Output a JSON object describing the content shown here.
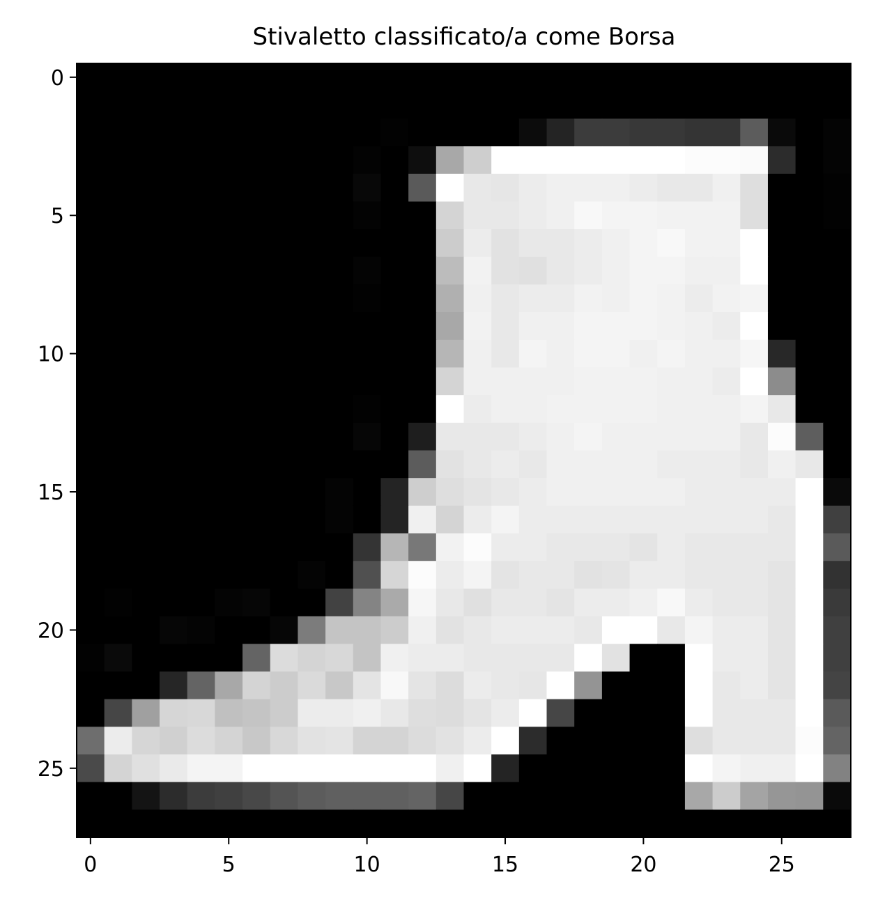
{
  "chart_data": {
    "type": "heatmap",
    "title": "Stivaletto classificato/a come Borsa",
    "xlabel": "",
    "ylabel": "",
    "colormap": "gray",
    "value_range": [
      0,
      255
    ],
    "xlim": [
      -0.5,
      27.5
    ],
    "ylim": [
      27.5,
      -0.5
    ],
    "x_ticks": [
      0,
      5,
      10,
      15,
      20,
      25
    ],
    "y_ticks": [
      0,
      5,
      10,
      15,
      20,
      25
    ],
    "x_tick_labels": [
      "0",
      "5",
      "10",
      "15",
      "20",
      "25"
    ],
    "y_tick_labels": [
      "0",
      "5",
      "10",
      "15",
      "20",
      "25"
    ],
    "grid": false,
    "rows": 28,
    "cols": 28,
    "pixels": [
      [
        0,
        0,
        0,
        0,
        0,
        0,
        0,
        0,
        0,
        0,
        0,
        0,
        0,
        0,
        0,
        0,
        0,
        0,
        0,
        0,
        0,
        0,
        0,
        0,
        0,
        0,
        0,
        0
      ],
      [
        0,
        0,
        0,
        0,
        0,
        0,
        0,
        0,
        0,
        0,
        0,
        0,
        0,
        0,
        0,
        0,
        0,
        0,
        0,
        0,
        0,
        0,
        0,
        0,
        0,
        0,
        0,
        0
      ],
      [
        0,
        0,
        0,
        0,
        0,
        0,
        0,
        0,
        0,
        0,
        0,
        2,
        0,
        0,
        0,
        0,
        12,
        36,
        60,
        60,
        56,
        56,
        52,
        52,
        92,
        10,
        0,
        4
      ],
      [
        0,
        0,
        0,
        0,
        0,
        0,
        0,
        0,
        0,
        0,
        3,
        0,
        14,
        168,
        206,
        255,
        255,
        255,
        255,
        255,
        255,
        255,
        252,
        252,
        250,
        44,
        0,
        4
      ],
      [
        0,
        0,
        0,
        0,
        0,
        0,
        0,
        0,
        0,
        0,
        8,
        0,
        90,
        255,
        232,
        230,
        236,
        240,
        240,
        240,
        236,
        232,
        232,
        240,
        222,
        0,
        0,
        2
      ],
      [
        0,
        0,
        0,
        0,
        0,
        0,
        0,
        0,
        0,
        0,
        3,
        0,
        0,
        212,
        232,
        232,
        236,
        240,
        248,
        244,
        244,
        242,
        242,
        242,
        222,
        0,
        0,
        2
      ],
      [
        0,
        0,
        0,
        0,
        0,
        0,
        0,
        0,
        0,
        0,
        0,
        0,
        0,
        204,
        236,
        226,
        232,
        232,
        236,
        240,
        244,
        248,
        242,
        242,
        255,
        0,
        0,
        0
      ],
      [
        0,
        0,
        0,
        0,
        0,
        0,
        0,
        0,
        0,
        0,
        4,
        0,
        0,
        188,
        242,
        226,
        224,
        232,
        236,
        240,
        244,
        244,
        240,
        240,
        255,
        0,
        0,
        0
      ],
      [
        0,
        0,
        0,
        0,
        0,
        0,
        0,
        0,
        0,
        0,
        2,
        0,
        0,
        176,
        240,
        232,
        236,
        236,
        242,
        240,
        244,
        242,
        236,
        242,
        244,
        0,
        0,
        0
      ],
      [
        0,
        0,
        0,
        0,
        0,
        0,
        0,
        0,
        0,
        0,
        0,
        0,
        0,
        168,
        242,
        232,
        240,
        240,
        244,
        244,
        244,
        242,
        240,
        236,
        255,
        0,
        0,
        0
      ],
      [
        0,
        0,
        0,
        0,
        0,
        0,
        0,
        0,
        0,
        0,
        0,
        0,
        0,
        182,
        240,
        232,
        244,
        240,
        244,
        244,
        240,
        244,
        240,
        240,
        246,
        40,
        0,
        0
      ],
      [
        0,
        0,
        0,
        0,
        0,
        0,
        0,
        0,
        0,
        0,
        0,
        0,
        0,
        212,
        240,
        240,
        240,
        240,
        242,
        242,
        242,
        240,
        240,
        236,
        255,
        140,
        0,
        0
      ],
      [
        0,
        0,
        0,
        0,
        0,
        0,
        0,
        0,
        0,
        0,
        2,
        0,
        0,
        255,
        236,
        240,
        240,
        242,
        242,
        242,
        242,
        240,
        240,
        240,
        244,
        232,
        0,
        0
      ],
      [
        0,
        0,
        0,
        0,
        0,
        0,
        0,
        0,
        0,
        0,
        6,
        0,
        30,
        232,
        232,
        232,
        236,
        240,
        244,
        240,
        240,
        240,
        240,
        240,
        232,
        252,
        94,
        0
      ],
      [
        0,
        0,
        0,
        0,
        0,
        0,
        0,
        0,
        0,
        0,
        0,
        0,
        92,
        226,
        232,
        236,
        232,
        240,
        240,
        240,
        240,
        236,
        236,
        236,
        232,
        240,
        232,
        0
      ],
      [
        0,
        0,
        0,
        0,
        0,
        0,
        0,
        0,
        0,
        4,
        0,
        36,
        206,
        222,
        228,
        232,
        236,
        240,
        240,
        240,
        240,
        240,
        236,
        236,
        236,
        236,
        255,
        10
      ],
      [
        0,
        0,
        0,
        0,
        0,
        0,
        0,
        0,
        0,
        4,
        0,
        36,
        240,
        212,
        236,
        244,
        236,
        236,
        236,
        236,
        236,
        236,
        236,
        236,
        236,
        232,
        255,
        64
      ],
      [
        0,
        0,
        0,
        0,
        0,
        0,
        0,
        0,
        0,
        0,
        52,
        182,
        120,
        242,
        252,
        236,
        236,
        232,
        232,
        232,
        228,
        236,
        232,
        232,
        232,
        232,
        255,
        90
      ],
      [
        0,
        0,
        0,
        0,
        0,
        0,
        0,
        0,
        4,
        0,
        80,
        214,
        252,
        236,
        244,
        228,
        232,
        232,
        226,
        228,
        236,
        236,
        232,
        232,
        232,
        228,
        255,
        50
      ],
      [
        0,
        2,
        0,
        0,
        0,
        4,
        6,
        0,
        0,
        66,
        132,
        170,
        246,
        232,
        224,
        232,
        232,
        228,
        236,
        236,
        240,
        248,
        236,
        232,
        232,
        228,
        255,
        58
      ],
      [
        0,
        0,
        0,
        6,
        4,
        0,
        0,
        6,
        124,
        196,
        196,
        204,
        240,
        226,
        232,
        236,
        236,
        236,
        232,
        255,
        255,
        232,
        244,
        236,
        236,
        228,
        255,
        64
      ],
      [
        2,
        10,
        0,
        0,
        0,
        0,
        100,
        220,
        212,
        216,
        196,
        240,
        236,
        236,
        232,
        232,
        232,
        232,
        255,
        226,
        0,
        0,
        255,
        236,
        236,
        228,
        255,
        64
      ],
      [
        0,
        0,
        0,
        38,
        100,
        168,
        212,
        204,
        218,
        200,
        228,
        248,
        228,
        220,
        236,
        232,
        230,
        255,
        148,
        0,
        0,
        0,
        255,
        232,
        236,
        228,
        255,
        68
      ],
      [
        0,
        70,
        160,
        214,
        216,
        192,
        196,
        204,
        236,
        236,
        240,
        232,
        222,
        220,
        228,
        236,
        255,
        70,
        0,
        0,
        0,
        0,
        255,
        232,
        232,
        232,
        255,
        90
      ],
      [
        110,
        236,
        214,
        208,
        220,
        212,
        200,
        216,
        226,
        228,
        212,
        212,
        220,
        226,
        236,
        255,
        44,
        0,
        0,
        0,
        0,
        0,
        222,
        232,
        232,
        232,
        252,
        100
      ],
      [
        74,
        212,
        224,
        234,
        244,
        244,
        255,
        255,
        255,
        255,
        255,
        255,
        255,
        240,
        255,
        36,
        0,
        0,
        0,
        0,
        0,
        0,
        255,
        244,
        240,
        240,
        255,
        130
      ],
      [
        0,
        0,
        20,
        44,
        60,
        64,
        72,
        84,
        92,
        96,
        96,
        96,
        100,
        70,
        0,
        0,
        0,
        0,
        0,
        0,
        0,
        0,
        168,
        204,
        164,
        150,
        148,
        10
      ],
      [
        0,
        0,
        0,
        0,
        0,
        0,
        0,
        0,
        0,
        0,
        0,
        0,
        0,
        0,
        0,
        0,
        0,
        0,
        0,
        0,
        0,
        0,
        0,
        0,
        0,
        0,
        0,
        0
      ]
    ]
  }
}
